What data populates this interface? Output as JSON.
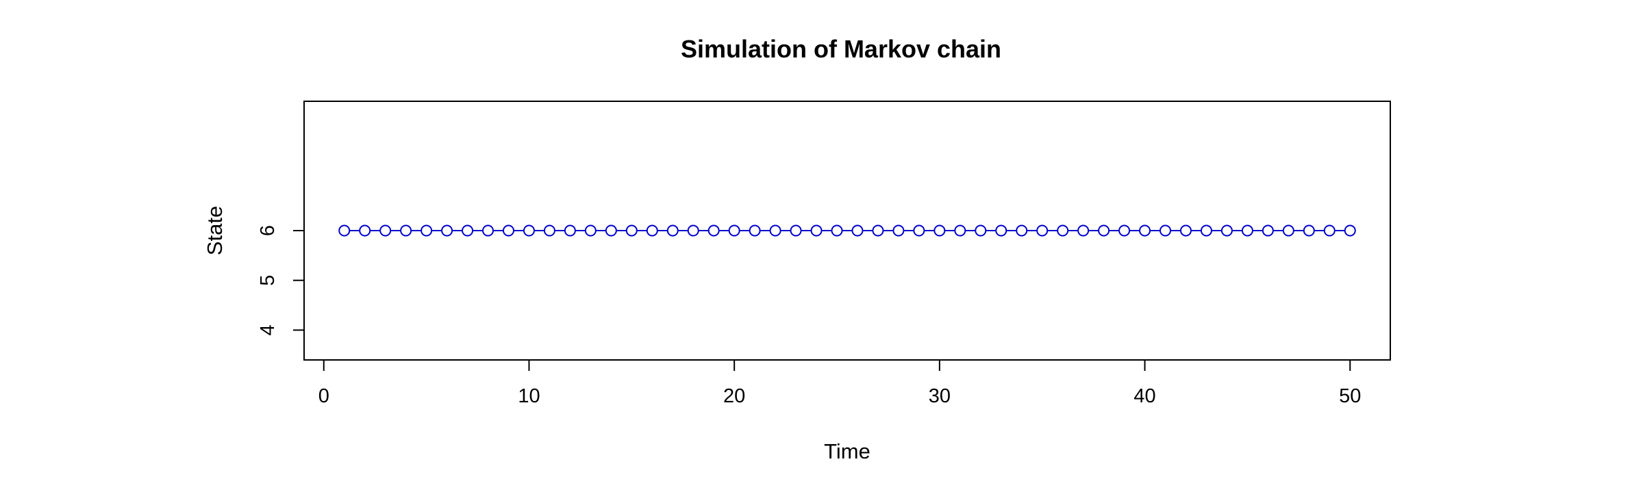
{
  "chart_data": {
    "type": "line",
    "title": "Simulation of Markov chain",
    "xlabel": "Time",
    "ylabel": "State",
    "xlim": [
      -0.96,
      51.96
    ],
    "ylim": [
      3.4,
      8.6
    ],
    "x_ticks": [
      0,
      10,
      20,
      30,
      40,
      50
    ],
    "y_ticks": [
      4,
      5,
      6
    ],
    "grid": false,
    "legend": "none",
    "series": [
      {
        "marker": "open-circle",
        "color": "#0000cc",
        "x": [
          1,
          2,
          3,
          4,
          5,
          6,
          7,
          8,
          9,
          10,
          11,
          12,
          13,
          14,
          15,
          16,
          17,
          18,
          19,
          20,
          21,
          22,
          23,
          24,
          25,
          26,
          27,
          28,
          29,
          30,
          31,
          32,
          33,
          34,
          35,
          36,
          37,
          38,
          39,
          40,
          41,
          42,
          43,
          44,
          45,
          46,
          47,
          48,
          49,
          50
        ],
        "values": [
          6,
          6,
          6,
          6,
          6,
          6,
          6,
          6,
          6,
          6,
          6,
          6,
          6,
          6,
          6,
          6,
          6,
          6,
          6,
          6,
          6,
          6,
          6,
          6,
          6,
          6,
          6,
          6,
          6,
          6,
          6,
          6,
          6,
          6,
          6,
          6,
          6,
          6,
          6,
          6,
          6,
          6,
          6,
          6,
          6,
          6,
          6,
          6,
          6,
          6
        ]
      }
    ]
  }
}
